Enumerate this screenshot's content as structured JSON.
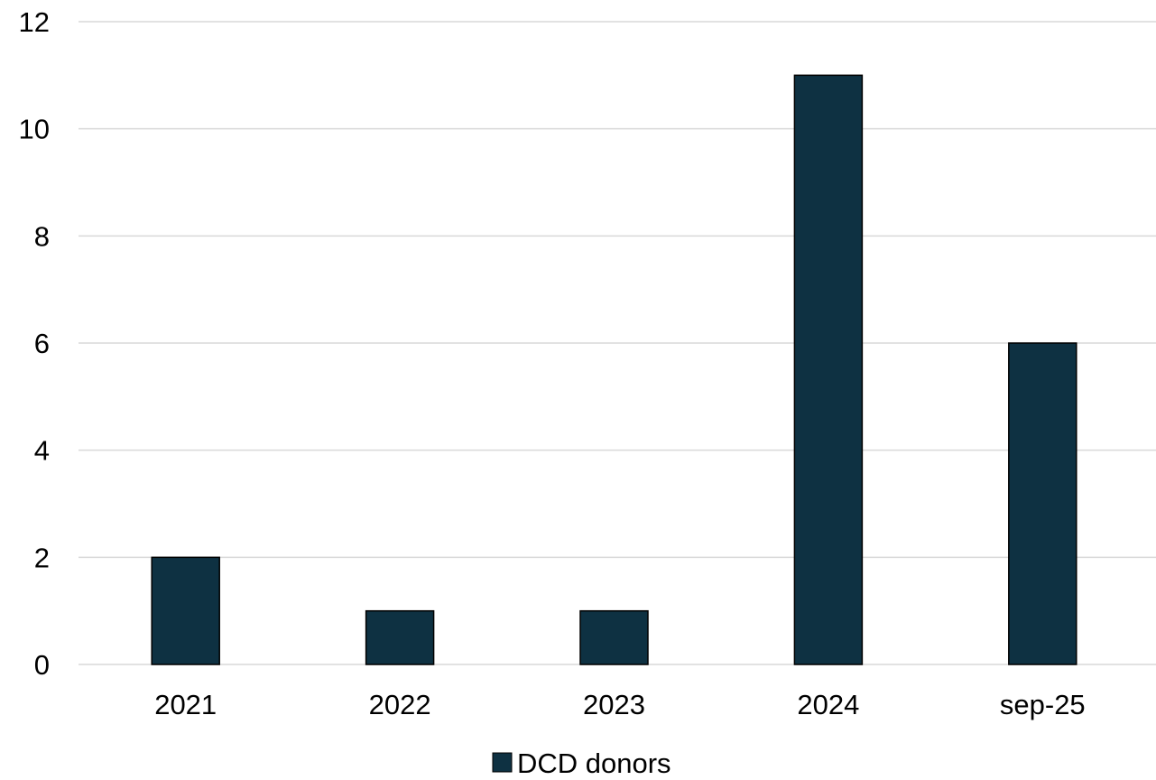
{
  "chart_data": {
    "type": "bar",
    "categories": [
      "2021",
      "2022",
      "2023",
      "2024",
      "sep-25"
    ],
    "series": [
      {
        "name": "DCD donors",
        "values": [
          2,
          1,
          1,
          11,
          6
        ],
        "color": "#0e3142"
      }
    ],
    "ylim": [
      0,
      12
    ],
    "yticks": [
      0,
      2,
      4,
      6,
      8,
      10,
      12
    ],
    "title": "",
    "xlabel": "",
    "ylabel": "",
    "grid": true,
    "legend_position": "bottom",
    "bar_outline_color": "#000000",
    "gridline_color": "#d9d9d9"
  }
}
